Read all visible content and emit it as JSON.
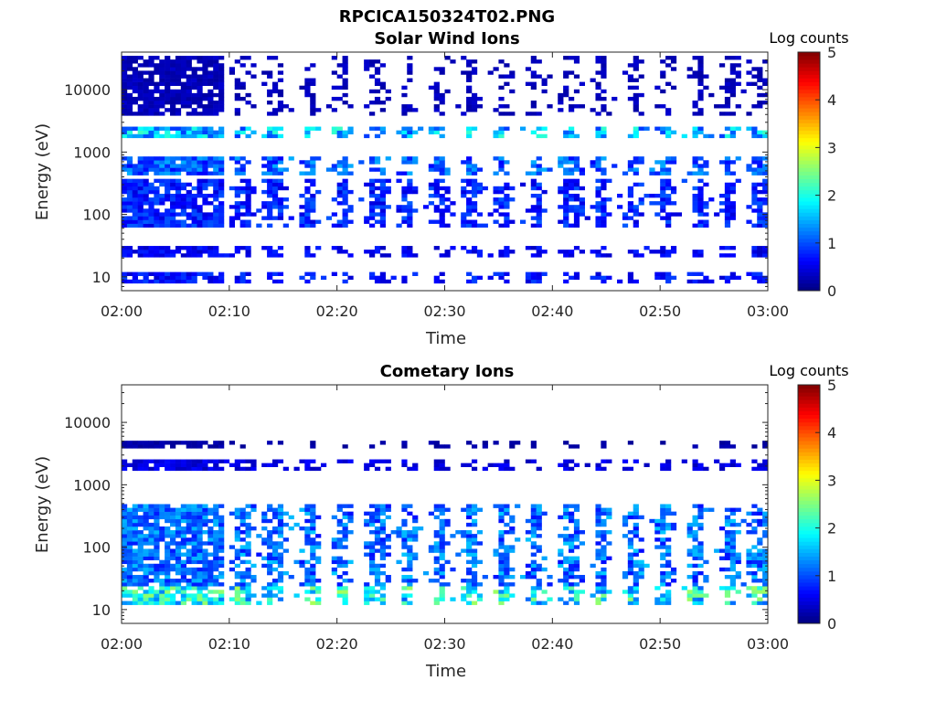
{
  "figure_title": "RPCICA150324T02.PNG",
  "colorbar": {
    "label": "Log counts",
    "ticks": [
      0,
      1,
      2,
      3,
      4,
      5
    ],
    "range": [
      0,
      5
    ],
    "colormap": "jet"
  },
  "chart_data": [
    {
      "type": "heatmap",
      "title": "Solar Wind Ions",
      "xlabel": "Time",
      "ylabel": "Energy (eV)",
      "x_ticks": [
        "02:00",
        "02:10",
        "02:20",
        "02:30",
        "02:40",
        "02:50",
        "03:00"
      ],
      "x_range_minutes": [
        0,
        60
      ],
      "y_scale": "log",
      "y_range": [
        6,
        40000
      ],
      "y_ticks": [
        10,
        100,
        1000,
        10000
      ],
      "y_tick_labels": [
        "10",
        "100",
        "1000",
        "10000"
      ],
      "value_range": [
        0,
        5
      ],
      "bursts_minutes": [
        0.7,
        2.8,
        5.2,
        8.2,
        11.3,
        14.2,
        17.5,
        20.6,
        23.8,
        26.6,
        29.6,
        32.6,
        35.4,
        38.4,
        41.7,
        44.6,
        47.5,
        50.5,
        53.4,
        56.5,
        59.3
      ],
      "energy_bands": [
        {
          "e_min": 8,
          "e_max": 12,
          "level": 0.7
        },
        {
          "e_min": 20,
          "e_max": 30,
          "level": 0.6
        },
        {
          "e_min": 60,
          "e_max": 350,
          "level": 0.8
        },
        {
          "e_min": 400,
          "e_max": 900,
          "level": 1.1
        },
        {
          "e_min": 1600,
          "e_max": 2600,
          "level": 1.6
        },
        {
          "e_min": 4000,
          "e_max": 35000,
          "level": 0.3
        }
      ],
      "notes": "Dense emission 02:00-02:09, then periodic bursts roughly every 3 minutes; peaks near 2 log counts around 2 keV."
    },
    {
      "type": "heatmap",
      "title": "Cometary Ions",
      "xlabel": "Time",
      "ylabel": "Energy (eV)",
      "x_ticks": [
        "02:00",
        "02:10",
        "02:20",
        "02:30",
        "02:40",
        "02:50",
        "03:00"
      ],
      "x_range_minutes": [
        0,
        60
      ],
      "y_scale": "log",
      "y_range": [
        6,
        40000
      ],
      "y_ticks": [
        10,
        100,
        1000,
        10000
      ],
      "y_tick_labels": [
        "10",
        "100",
        "1000",
        "10000"
      ],
      "value_range": [
        0,
        5
      ],
      "bursts_minutes": [
        0.7,
        2.8,
        5.2,
        8.2,
        11.3,
        14.2,
        17.5,
        20.6,
        23.8,
        26.6,
        29.6,
        32.6,
        35.4,
        38.4,
        41.7,
        44.6,
        47.5,
        50.5,
        53.4,
        56.5,
        59.3
      ],
      "energy_bands": [
        {
          "e_min": 12,
          "e_max": 25,
          "level": 2.0
        },
        {
          "e_min": 25,
          "e_max": 500,
          "level": 1.2
        },
        {
          "e_min": 1800,
          "e_max": 2600,
          "level": 0.5
        },
        {
          "e_min": 4000,
          "e_max": 5000,
          "level": 0.2
        }
      ],
      "notes": "Strong low-energy emission 10-30 eV reaching about 3 log counts; broad 30-500 eV cometary population."
    }
  ]
}
